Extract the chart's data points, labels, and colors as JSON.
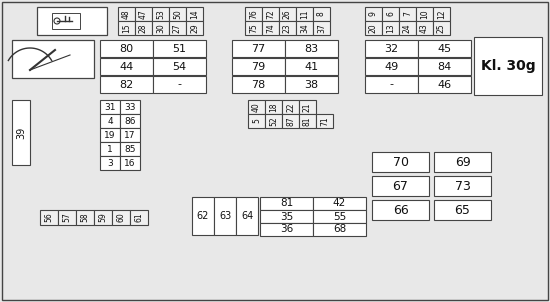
{
  "bg_color": "#e8e8e8",
  "cell_fill": "#ffffff",
  "cell_border": "#444444",
  "grp1_top": [
    "48",
    "47",
    "53",
    "50",
    "14"
  ],
  "grp1_bot": [
    "15",
    "28",
    "30",
    "27",
    "29"
  ],
  "grp2_top": [
    "76",
    "72",
    "26",
    "11",
    "8"
  ],
  "grp2_bot": [
    "75",
    "74",
    "23",
    "34",
    "37"
  ],
  "grp3_top": [
    "9",
    "6",
    "7",
    "10",
    "12"
  ],
  "grp3_bot": [
    "20",
    "13",
    "24",
    "43",
    "25"
  ],
  "wide_pairs": [
    [
      [
        "80",
        "51"
      ],
      [
        "77",
        "83"
      ],
      [
        "32",
        "45"
      ]
    ],
    [
      [
        "44",
        "54"
      ],
      [
        "79",
        "41"
      ],
      [
        "49",
        "84"
      ]
    ],
    [
      [
        "82",
        "-"
      ],
      [
        "78",
        "38"
      ],
      [
        "-",
        "46"
      ]
    ]
  ],
  "colA": [
    "31",
    "4",
    "19",
    "1",
    "3"
  ],
  "colB": [
    "33",
    "86",
    "17",
    "85",
    "16"
  ],
  "mid_top": [
    "40",
    "18",
    "22",
    "21"
  ],
  "mid_bot": [
    "5",
    "52",
    "87",
    "81",
    "71"
  ],
  "bot_small": [
    "56",
    "57",
    "58",
    "59",
    "60",
    "61"
  ],
  "bot_tall": [
    "62",
    "63",
    "64"
  ],
  "br_col1": [
    "81",
    "35",
    "36"
  ],
  "br_col2": [
    "42",
    "55",
    "68"
  ],
  "big_col1": [
    "70",
    "67",
    "66"
  ],
  "big_col2": [
    "69",
    "73",
    "65"
  ],
  "kl30g": "Kl. 30g"
}
